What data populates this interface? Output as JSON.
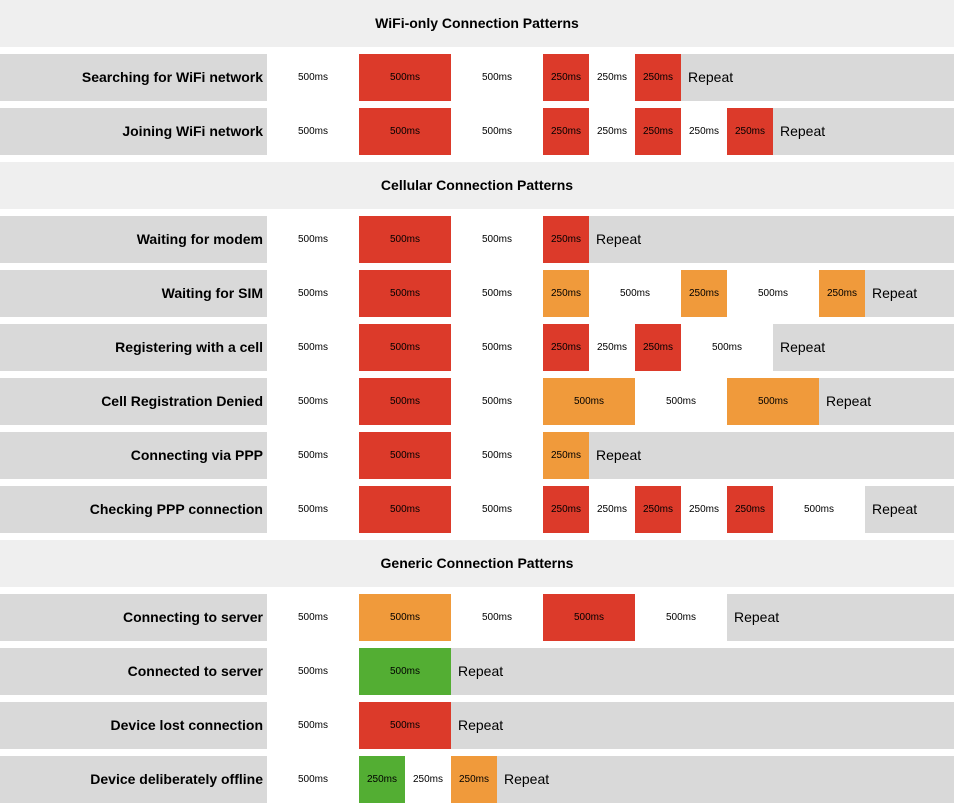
{
  "chart_data": {
    "type": "timing-diagram",
    "unit": "ms",
    "repeat_label": "Repeat",
    "colors": {
      "off": "#ffffff",
      "red": "#dc3a2a",
      "orange": "#f09a3b",
      "green": "#53ae33",
      "label_bg": "#d9d9d9",
      "header_bg": "#efefef"
    },
    "sections": [
      {
        "title": "WiFi-only Connection Patterns",
        "rows": [
          {
            "label": "Searching for WiFi network",
            "segments": [
              {
                "color": "off",
                "duration": 500,
                "text": "500ms"
              },
              {
                "color": "red",
                "duration": 500,
                "text": "500ms"
              },
              {
                "color": "off",
                "duration": 500,
                "text": "500ms"
              },
              {
                "color": "red",
                "duration": 250,
                "text": "250ms"
              },
              {
                "color": "off",
                "duration": 250,
                "text": "250ms"
              },
              {
                "color": "red",
                "duration": 250,
                "text": "250ms"
              }
            ]
          },
          {
            "label": "Joining WiFi network",
            "segments": [
              {
                "color": "off",
                "duration": 500,
                "text": "500ms"
              },
              {
                "color": "red",
                "duration": 500,
                "text": "500ms"
              },
              {
                "color": "off",
                "duration": 500,
                "text": "500ms"
              },
              {
                "color": "red",
                "duration": 250,
                "text": "250ms"
              },
              {
                "color": "off",
                "duration": 250,
                "text": "250ms"
              },
              {
                "color": "red",
                "duration": 250,
                "text": "250ms"
              },
              {
                "color": "off",
                "duration": 250,
                "text": "250ms"
              },
              {
                "color": "red",
                "duration": 250,
                "text": "250ms"
              }
            ]
          }
        ]
      },
      {
        "title": "Cellular Connection Patterns",
        "rows": [
          {
            "label": "Waiting for modem",
            "segments": [
              {
                "color": "off",
                "duration": 500,
                "text": "500ms"
              },
              {
                "color": "red",
                "duration": 500,
                "text": "500ms"
              },
              {
                "color": "off",
                "duration": 500,
                "text": "500ms"
              },
              {
                "color": "red",
                "duration": 250,
                "text": "250ms"
              }
            ]
          },
          {
            "label": "Waiting for SIM",
            "segments": [
              {
                "color": "off",
                "duration": 500,
                "text": "500ms"
              },
              {
                "color": "red",
                "duration": 500,
                "text": "500ms"
              },
              {
                "color": "off",
                "duration": 500,
                "text": "500ms"
              },
              {
                "color": "orange",
                "duration": 250,
                "text": "250ms"
              },
              {
                "color": "off",
                "duration": 500,
                "text": "500ms"
              },
              {
                "color": "orange",
                "duration": 250,
                "text": "250ms"
              },
              {
                "color": "off",
                "duration": 500,
                "text": "500ms"
              },
              {
                "color": "orange",
                "duration": 250,
                "text": "250ms"
              }
            ]
          },
          {
            "label": "Registering with a cell",
            "segments": [
              {
                "color": "off",
                "duration": 500,
                "text": "500ms"
              },
              {
                "color": "red",
                "duration": 500,
                "text": "500ms"
              },
              {
                "color": "off",
                "duration": 500,
                "text": "500ms"
              },
              {
                "color": "red",
                "duration": 250,
                "text": "250ms"
              },
              {
                "color": "off",
                "duration": 250,
                "text": "250ms"
              },
              {
                "color": "red",
                "duration": 250,
                "text": "250ms"
              },
              {
                "color": "off",
                "duration": 500,
                "text": "500ms"
              }
            ]
          },
          {
            "label": "Cell Registration Denied",
            "segments": [
              {
                "color": "off",
                "duration": 500,
                "text": "500ms"
              },
              {
                "color": "red",
                "duration": 500,
                "text": "500ms"
              },
              {
                "color": "off",
                "duration": 500,
                "text": "500ms"
              },
              {
                "color": "orange",
                "duration": 500,
                "text": "500ms"
              },
              {
                "color": "off",
                "duration": 500,
                "text": "500ms"
              },
              {
                "color": "orange",
                "duration": 500,
                "text": "500ms"
              }
            ]
          },
          {
            "label": "Connecting via PPP",
            "segments": [
              {
                "color": "off",
                "duration": 500,
                "text": "500ms"
              },
              {
                "color": "red",
                "duration": 500,
                "text": "500ms"
              },
              {
                "color": "off",
                "duration": 500,
                "text": "500ms"
              },
              {
                "color": "orange",
                "duration": 250,
                "text": "250ms"
              }
            ]
          },
          {
            "label": "Checking PPP connection",
            "segments": [
              {
                "color": "off",
                "duration": 500,
                "text": "500ms"
              },
              {
                "color": "red",
                "duration": 500,
                "text": "500ms"
              },
              {
                "color": "off",
                "duration": 500,
                "text": "500ms"
              },
              {
                "color": "red",
                "duration": 250,
                "text": "250ms"
              },
              {
                "color": "off",
                "duration": 250,
                "text": "250ms"
              },
              {
                "color": "red",
                "duration": 250,
                "text": "250ms"
              },
              {
                "color": "off",
                "duration": 250,
                "text": "250ms"
              },
              {
                "color": "red",
                "duration": 250,
                "text": "250ms"
              },
              {
                "color": "off",
                "duration": 500,
                "text": "500ms"
              }
            ]
          }
        ]
      },
      {
        "title": "Generic Connection Patterns",
        "rows": [
          {
            "label": "Connecting to server",
            "segments": [
              {
                "color": "off",
                "duration": 500,
                "text": "500ms"
              },
              {
                "color": "orange",
                "duration": 500,
                "text": "500ms"
              },
              {
                "color": "off",
                "duration": 500,
                "text": "500ms"
              },
              {
                "color": "red",
                "duration": 500,
                "text": "500ms"
              },
              {
                "color": "off",
                "duration": 500,
                "text": "500ms"
              }
            ]
          },
          {
            "label": "Connected to server",
            "segments": [
              {
                "color": "off",
                "duration": 500,
                "text": "500ms"
              },
              {
                "color": "green",
                "duration": 500,
                "text": "500ms"
              }
            ]
          },
          {
            "label": "Device lost connection",
            "segments": [
              {
                "color": "off",
                "duration": 500,
                "text": "500ms"
              },
              {
                "color": "red",
                "duration": 500,
                "text": "500ms"
              }
            ]
          },
          {
            "label": "Device deliberately offline",
            "segments": [
              {
                "color": "off",
                "duration": 500,
                "text": "500ms"
              },
              {
                "color": "green",
                "duration": 250,
                "text": "250ms"
              },
              {
                "color": "off",
                "duration": 250,
                "text": "250ms"
              },
              {
                "color": "orange",
                "duration": 250,
                "text": "250ms"
              }
            ]
          }
        ]
      }
    ]
  }
}
